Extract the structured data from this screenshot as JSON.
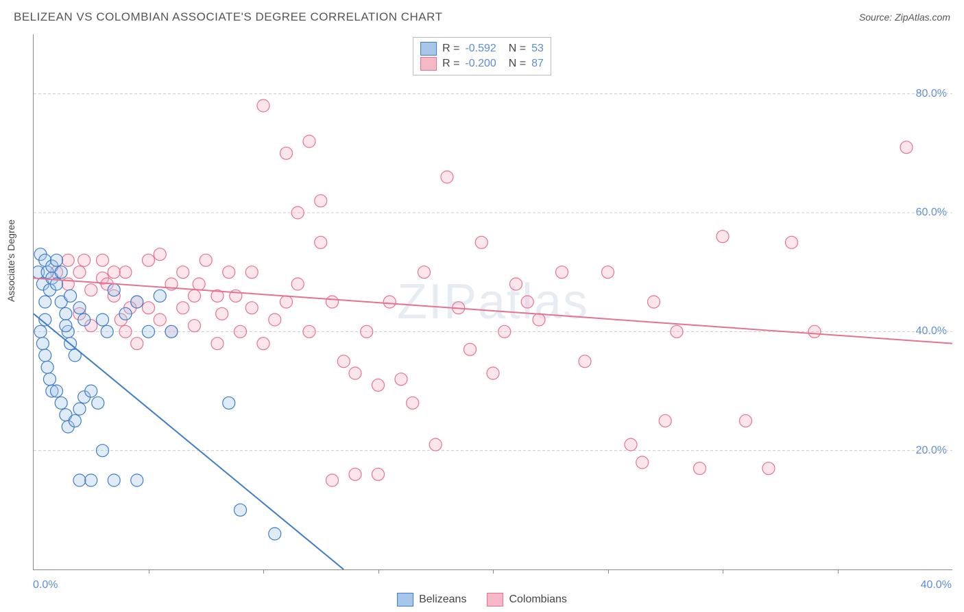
{
  "title": "BELIZEAN VS COLOMBIAN ASSOCIATE'S DEGREE CORRELATION CHART",
  "source": "Source: ZipAtlas.com",
  "y_axis_label": "Associate's Degree",
  "watermark": "ZIPatlas",
  "chart": {
    "type": "scatter",
    "background_color": "#ffffff",
    "grid_color": "#cccccc",
    "axis_color": "#888888",
    "tick_color": "#5b8dd6",
    "tick_fontsize": 16,
    "title_fontsize": 17,
    "xlim": [
      0,
      40
    ],
    "ylim": [
      0,
      90
    ],
    "x_ticks": [
      0,
      5,
      10,
      15,
      20,
      25,
      30,
      35,
      40
    ],
    "x_tick_labels": {
      "0": "0.0%",
      "40": "40.0%"
    },
    "y_ticks": [
      20,
      40,
      60,
      80
    ],
    "y_tick_labels": {
      "20": "20.0%",
      "40": "40.0%",
      "60": "60.0%",
      "80": "80.0%"
    },
    "marker_radius": 9,
    "marker_stroke_width": 1.2,
    "marker_fill_opacity": 0.35,
    "line_width": 2,
    "series": [
      {
        "name": "Belizeans",
        "color_stroke": "#3d7cc9",
        "color_fill": "#a6c6ea",
        "R": "-0.592",
        "N": "53",
        "trend": {
          "x1": 0,
          "y1": 43,
          "x2": 13.5,
          "y2": 0
        },
        "points": [
          [
            0.2,
            50
          ],
          [
            0.3,
            53
          ],
          [
            0.4,
            48
          ],
          [
            0.5,
            52
          ],
          [
            0.5,
            45
          ],
          [
            0.6,
            50
          ],
          [
            0.7,
            47
          ],
          [
            0.8,
            49
          ],
          [
            0.3,
            40
          ],
          [
            0.4,
            38
          ],
          [
            0.5,
            36
          ],
          [
            0.6,
            34
          ],
          [
            0.7,
            32
          ],
          [
            0.8,
            30
          ],
          [
            0.5,
            42
          ],
          [
            1.0,
            48
          ],
          [
            1.2,
            45
          ],
          [
            1.4,
            43
          ],
          [
            1.5,
            40
          ],
          [
            1.6,
            38
          ],
          [
            1.8,
            36
          ],
          [
            2.0,
            44
          ],
          [
            2.2,
            42
          ],
          [
            1.0,
            30
          ],
          [
            1.2,
            28
          ],
          [
            1.4,
            26
          ],
          [
            1.5,
            24
          ],
          [
            1.8,
            25
          ],
          [
            2.0,
            27
          ],
          [
            2.2,
            29
          ],
          [
            2.5,
            30
          ],
          [
            2.8,
            28
          ],
          [
            3.0,
            42
          ],
          [
            3.2,
            40
          ],
          [
            3.5,
            47
          ],
          [
            4.0,
            43
          ],
          [
            4.5,
            45
          ],
          [
            5.0,
            40
          ],
          [
            5.5,
            46
          ],
          [
            6.0,
            40
          ],
          [
            2.0,
            15
          ],
          [
            2.5,
            15
          ],
          [
            3.0,
            20
          ],
          [
            3.5,
            15
          ],
          [
            4.5,
            15
          ],
          [
            8.5,
            28
          ],
          [
            9.0,
            10
          ],
          [
            10.5,
            6
          ],
          [
            0.8,
            51
          ],
          [
            1.0,
            52
          ],
          [
            1.2,
            50
          ],
          [
            1.4,
            41
          ],
          [
            1.6,
            46
          ]
        ]
      },
      {
        "name": "Colombians",
        "color_stroke": "#e5738f",
        "color_fill": "#f5b8c6",
        "R": "-0.200",
        "N": "87",
        "trend": {
          "x1": 0,
          "y1": 49,
          "x2": 40,
          "y2": 38
        },
        "points": [
          [
            1.0,
            50
          ],
          [
            1.5,
            48
          ],
          [
            2.0,
            50
          ],
          [
            2.5,
            47
          ],
          [
            3.0,
            49
          ],
          [
            3.5,
            46
          ],
          [
            4.0,
            50
          ],
          [
            4.5,
            45
          ],
          [
            5.0,
            52
          ],
          [
            5.5,
            42
          ],
          [
            6.0,
            48
          ],
          [
            6.5,
            44
          ],
          [
            7.0,
            46
          ],
          [
            7.5,
            52
          ],
          [
            8.0,
            46
          ],
          [
            3.0,
            52
          ],
          [
            3.5,
            50
          ],
          [
            5.5,
            53
          ],
          [
            8.5,
            50
          ],
          [
            9.0,
            40
          ],
          [
            9.5,
            44
          ],
          [
            10.0,
            38
          ],
          [
            10.5,
            42
          ],
          [
            11.0,
            45
          ],
          [
            11.5,
            48
          ],
          [
            12.0,
            40
          ],
          [
            10.0,
            78
          ],
          [
            11.0,
            70
          ],
          [
            11.5,
            60
          ],
          [
            12.0,
            72
          ],
          [
            12.5,
            62
          ],
          [
            12.5,
            55
          ],
          [
            13.0,
            45
          ],
          [
            13.5,
            35
          ],
          [
            14.0,
            33
          ],
          [
            14.5,
            40
          ],
          [
            15.0,
            31
          ],
          [
            15.5,
            45
          ],
          [
            16.0,
            32
          ],
          [
            16.5,
            28
          ],
          [
            17.0,
            50
          ],
          [
            17.5,
            21
          ],
          [
            18.0,
            66
          ],
          [
            18.5,
            44
          ],
          [
            19.0,
            37
          ],
          [
            13.0,
            15
          ],
          [
            14.0,
            16
          ],
          [
            15.0,
            16
          ],
          [
            19.5,
            55
          ],
          [
            20.0,
            33
          ],
          [
            20.5,
            40
          ],
          [
            21.0,
            48
          ],
          [
            21.5,
            45
          ],
          [
            22.0,
            42
          ],
          [
            23.0,
            50
          ],
          [
            24.0,
            35
          ],
          [
            25.0,
            50
          ],
          [
            26.0,
            21
          ],
          [
            26.5,
            18
          ],
          [
            27.0,
            45
          ],
          [
            27.5,
            25
          ],
          [
            28.0,
            40
          ],
          [
            29.0,
            17
          ],
          [
            30.0,
            56
          ],
          [
            31.0,
            25
          ],
          [
            32.0,
            17
          ],
          [
            33.0,
            55
          ],
          [
            34.0,
            40
          ],
          [
            38.0,
            71
          ],
          [
            2.0,
            43
          ],
          [
            2.5,
            41
          ],
          [
            4.0,
            40
          ],
          [
            4.5,
            38
          ],
          [
            5.0,
            44
          ],
          [
            6.0,
            40
          ],
          [
            7.0,
            41
          ],
          [
            8.0,
            38
          ],
          [
            1.5,
            52
          ],
          [
            2.2,
            52
          ],
          [
            3.2,
            48
          ],
          [
            3.8,
            42
          ],
          [
            4.2,
            44
          ],
          [
            6.5,
            50
          ],
          [
            7.2,
            48
          ],
          [
            8.2,
            43
          ],
          [
            8.8,
            46
          ],
          [
            9.5,
            50
          ]
        ]
      }
    ]
  },
  "legend_top_labels": {
    "R": "R =",
    "N": "N ="
  },
  "legend_bottom": {
    "s1": "Belizeans",
    "s2": "Colombians"
  }
}
